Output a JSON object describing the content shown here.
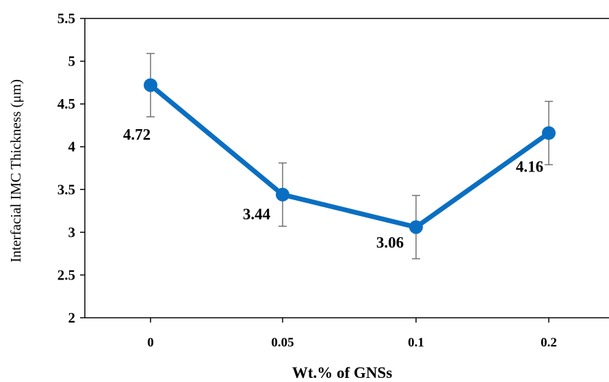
{
  "chart_data": {
    "type": "line",
    "categories": [
      "0",
      "0.05",
      "0.1",
      "0.2"
    ],
    "values": [
      4.72,
      3.44,
      3.06,
      4.16
    ],
    "error": [
      0.37,
      0.37,
      0.37,
      0.37
    ],
    "data_labels": [
      "4.72",
      "3.44",
      "3.06",
      "4.16"
    ],
    "xlabel": "Wt.% of GNSs",
    "ylabel": "Interfacial  IMC Thickness (μm)",
    "ylim": [
      2,
      5.5
    ],
    "yticks": [
      2,
      2.5,
      3,
      3.5,
      4,
      4.5,
      5,
      5.5
    ],
    "ytick_labels": [
      "2",
      "2.5",
      "3",
      "3.5",
      "4",
      "4.5",
      "5",
      "5.5"
    ],
    "grid": false,
    "series_color": "#0a6fc2",
    "error_bar_color": "#707070"
  }
}
